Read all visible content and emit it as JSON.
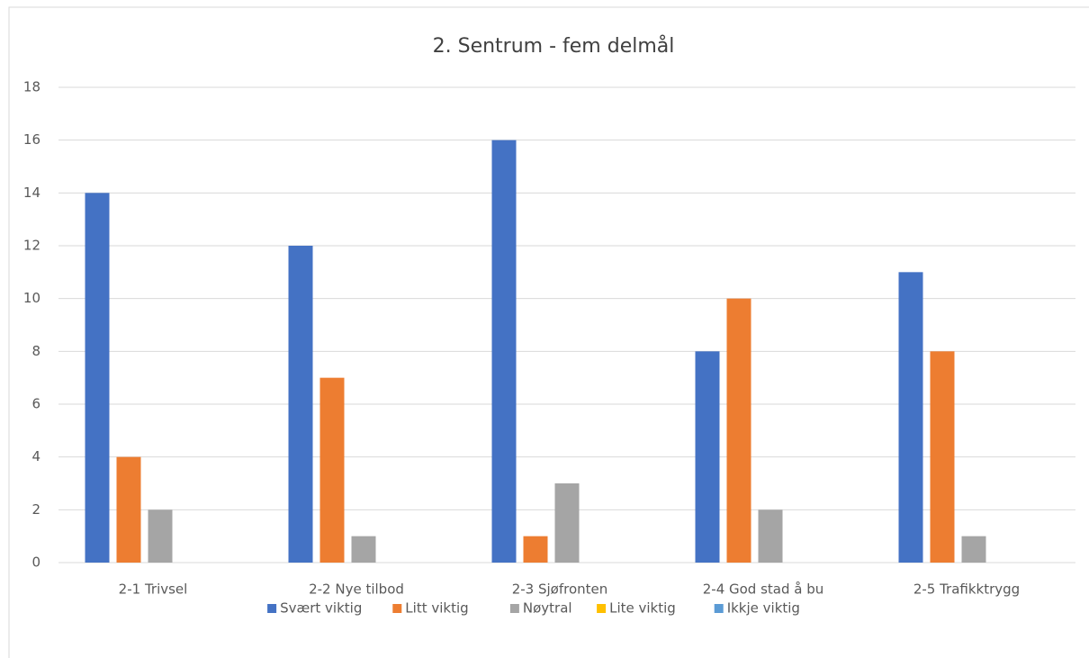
{
  "chart_data": {
    "type": "bar",
    "title": "2.  Sentrum  -  fem delmål",
    "categories": [
      "2-1 Trivsel",
      "2-2 Nye tilbod",
      "2-3 Sjøfronten",
      "2-4 God stad å bu",
      "2-5 Trafikktrygg"
    ],
    "series": [
      {
        "name": "Svært viktig",
        "color": "#4472c4",
        "values": [
          14,
          12,
          16,
          8,
          11
        ]
      },
      {
        "name": "Litt viktig",
        "color": "#ed7d31",
        "values": [
          4,
          7,
          1,
          10,
          8
        ]
      },
      {
        "name": "Nøytral",
        "color": "#a5a5a5",
        "values": [
          2,
          1,
          3,
          2,
          1
        ]
      },
      {
        "name": "Lite viktig",
        "color": "#ffc000",
        "values": [
          0,
          0,
          0,
          0,
          0
        ]
      },
      {
        "name": "Ikkje viktig",
        "color": "#5b9bd5",
        "values": [
          0,
          0,
          0,
          0,
          0
        ]
      }
    ],
    "ylim": [
      0,
      18
    ],
    "yticks": [
      0,
      2,
      4,
      6,
      8,
      10,
      12,
      14,
      16,
      18
    ],
    "grid": true,
    "legend": "bottom"
  }
}
